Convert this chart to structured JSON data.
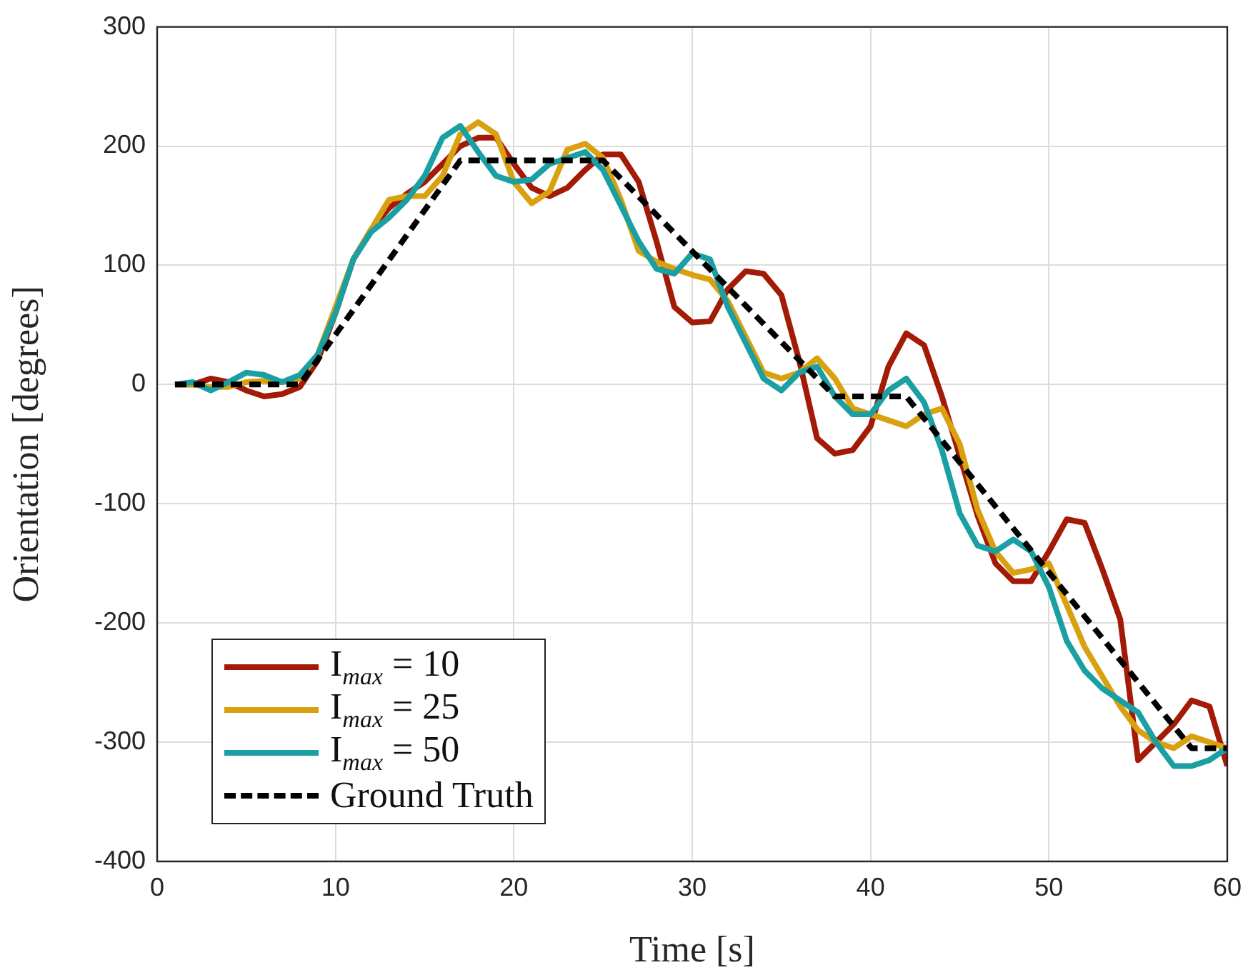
{
  "chart_data": {
    "type": "line",
    "xlabel": "Time [s]",
    "ylabel": "Orientation [degrees]",
    "x": [
      1,
      2,
      3,
      4,
      5,
      6,
      7,
      8,
      9,
      10,
      11,
      12,
      13,
      14,
      15,
      16,
      17,
      18,
      19,
      20,
      21,
      22,
      23,
      24,
      25,
      26,
      27,
      28,
      29,
      30,
      31,
      32,
      33,
      34,
      35,
      36,
      37,
      38,
      39,
      40,
      41,
      42,
      43,
      44,
      45,
      46,
      47,
      48,
      49,
      50,
      51,
      52,
      53,
      54,
      55,
      56,
      57,
      58,
      59,
      60
    ],
    "series": [
      {
        "name": "I$_{max}$ = 10",
        "color": "#a31a06",
        "line_style": "solid",
        "values": [
          0,
          0,
          5,
          2,
          -5,
          -10,
          -8,
          -2,
          20,
          60,
          105,
          130,
          148,
          160,
          170,
          185,
          200,
          207,
          207,
          185,
          165,
          158,
          165,
          180,
          193,
          193,
          170,
          120,
          65,
          52,
          53,
          80,
          95,
          93,
          75,
          20,
          -45,
          -58,
          -55,
          -35,
          15,
          43,
          33,
          -10,
          -60,
          -110,
          -150,
          -165,
          -165,
          -140,
          -113,
          -116,
          -155,
          -197,
          -315,
          -300,
          -285,
          -265,
          -270,
          -320
        ]
      },
      {
        "name": "I$_{max}$ = 25",
        "color": "#d9a00f",
        "line_style": "solid",
        "values": [
          0,
          0,
          -2,
          -2,
          2,
          3,
          2,
          5,
          25,
          65,
          105,
          130,
          155,
          158,
          158,
          175,
          210,
          220,
          210,
          170,
          152,
          162,
          197,
          202,
          190,
          155,
          112,
          103,
          97,
          92,
          88,
          70,
          40,
          10,
          5,
          10,
          22,
          5,
          -20,
          -25,
          -30,
          -35,
          -25,
          -20,
          -50,
          -105,
          -140,
          -158,
          -155,
          -150,
          -185,
          -220,
          -245,
          -270,
          -290,
          -300,
          -305,
          -295,
          -300,
          -305
        ]
      },
      {
        "name": "I$_{max}$ = 50",
        "color": "#1a9fa3",
        "line_style": "solid",
        "values": [
          0,
          2,
          -5,
          2,
          10,
          8,
          2,
          8,
          25,
          60,
          105,
          128,
          140,
          155,
          175,
          207,
          217,
          195,
          175,
          170,
          172,
          185,
          190,
          195,
          180,
          150,
          120,
          97,
          93,
          110,
          105,
          65,
          35,
          5,
          -5,
          10,
          15,
          -10,
          -25,
          -25,
          -5,
          5,
          -15,
          -55,
          -108,
          -135,
          -140,
          -130,
          -140,
          -170,
          -215,
          -240,
          -255,
          -265,
          -275,
          -300,
          -320,
          -320,
          -315,
          -305
        ]
      },
      {
        "name": "Ground Truth",
        "color": "#000000",
        "line_style": "dashed",
        "x": [
          1,
          8,
          17,
          25,
          38,
          42,
          58,
          60
        ],
        "values": [
          0,
          0,
          188,
          188,
          -10,
          -10,
          -305,
          -305
        ]
      }
    ],
    "xlim": [
      0,
      60
    ],
    "xticks": [
      0,
      10,
      20,
      30,
      40,
      50,
      60
    ],
    "ylim": [
      -400,
      300
    ],
    "yticks": [
      -400,
      -300,
      -200,
      -100,
      0,
      100,
      200,
      300
    ],
    "grid": true,
    "legend": "bottom left",
    "marker": "none"
  }
}
